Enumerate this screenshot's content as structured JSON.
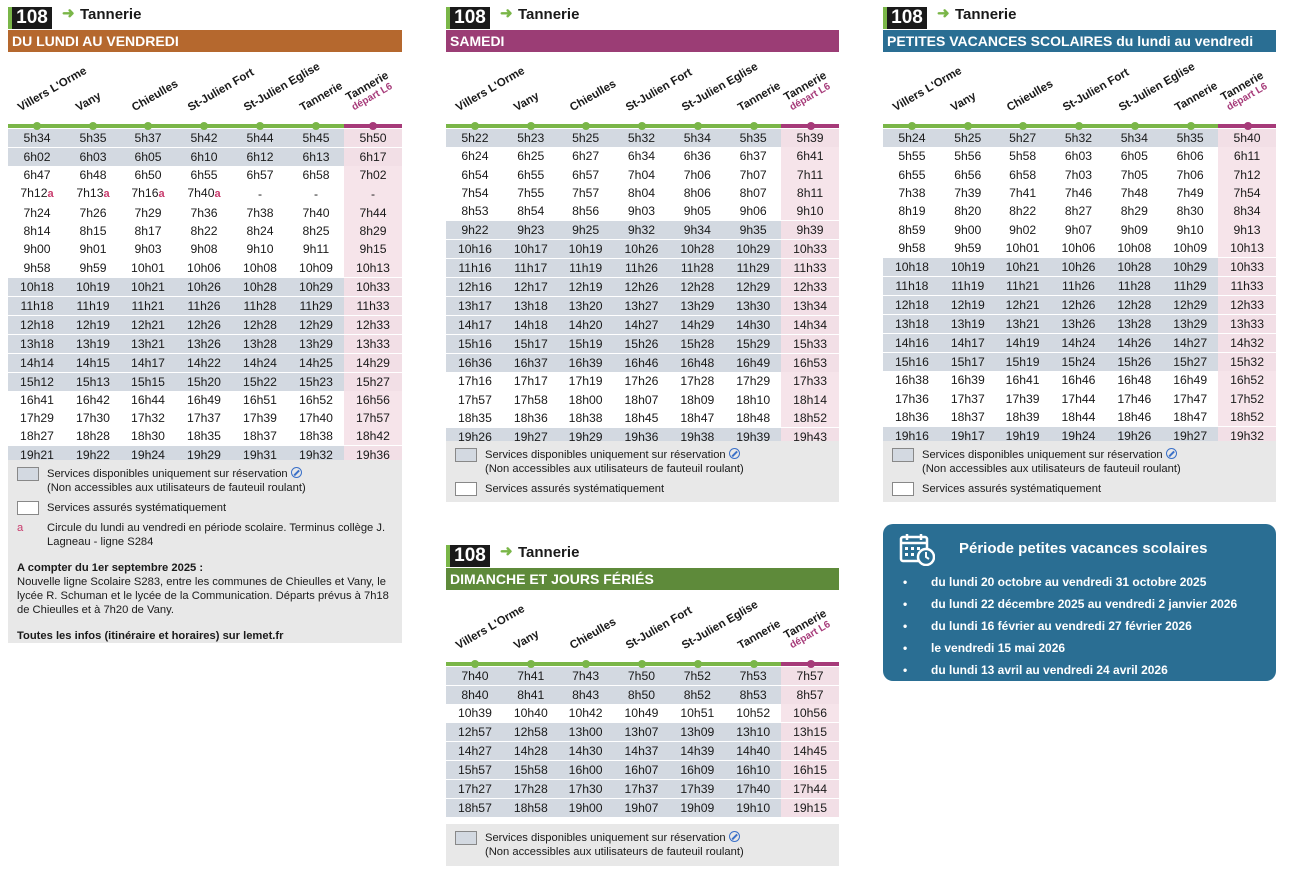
{
  "line_number": "108",
  "destination": "Tannerie",
  "stops": [
    "Villers L'Orme",
    "Vany",
    "Chieulles",
    "St-Julien Fort",
    "St-Julien Eglise",
    "Tannerie",
    "Tannerie"
  ],
  "terminus_sub": "départ L6",
  "schedules": [
    {
      "id": "weekday",
      "title": "DU LUNDI AU VENDREDI",
      "color": "#b5682e",
      "rows": [
        {
          "g": 1,
          "c": [
            "5h34",
            "5h35",
            "5h37",
            "5h42",
            "5h44",
            "5h45",
            "5h50"
          ]
        },
        {
          "g": 1,
          "c": [
            "6h02",
            "6h03",
            "6h05",
            "6h10",
            "6h12",
            "6h13",
            "6h17"
          ]
        },
        {
          "g": 0,
          "c": [
            "6h47",
            "6h48",
            "6h50",
            "6h55",
            "6h57",
            "6h58",
            "7h02"
          ]
        },
        {
          "g": 0,
          "c": [
            "7h12",
            "7h13",
            "7h16",
            "7h40",
            "-",
            "-",
            "-"
          ],
          "a": [
            0,
            1,
            2,
            3
          ]
        },
        {
          "g": 0,
          "c": [
            "7h24",
            "7h26",
            "7h29",
            "7h36",
            "7h38",
            "7h40",
            "7h44"
          ]
        },
        {
          "g": 0,
          "c": [
            "8h14",
            "8h15",
            "8h17",
            "8h22",
            "8h24",
            "8h25",
            "8h29"
          ]
        },
        {
          "g": 0,
          "c": [
            "9h00",
            "9h01",
            "9h03",
            "9h08",
            "9h10",
            "9h11",
            "9h15"
          ]
        },
        {
          "g": 0,
          "c": [
            "9h58",
            "9h59",
            "10h01",
            "10h06",
            "10h08",
            "10h09",
            "10h13"
          ]
        },
        {
          "g": 1,
          "c": [
            "10h18",
            "10h19",
            "10h21",
            "10h26",
            "10h28",
            "10h29",
            "10h33"
          ]
        },
        {
          "g": 1,
          "c": [
            "11h18",
            "11h19",
            "11h21",
            "11h26",
            "11h28",
            "11h29",
            "11h33"
          ]
        },
        {
          "g": 1,
          "c": [
            "12h18",
            "12h19",
            "12h21",
            "12h26",
            "12h28",
            "12h29",
            "12h33"
          ]
        },
        {
          "g": 1,
          "c": [
            "13h18",
            "13h19",
            "13h21",
            "13h26",
            "13h28",
            "13h29",
            "13h33"
          ]
        },
        {
          "g": 1,
          "c": [
            "14h14",
            "14h15",
            "14h17",
            "14h22",
            "14h24",
            "14h25",
            "14h29"
          ]
        },
        {
          "g": 1,
          "c": [
            "15h12",
            "15h13",
            "15h15",
            "15h20",
            "15h22",
            "15h23",
            "15h27"
          ]
        },
        {
          "g": 0,
          "c": [
            "16h41",
            "16h42",
            "16h44",
            "16h49",
            "16h51",
            "16h52",
            "16h56"
          ]
        },
        {
          "g": 0,
          "c": [
            "17h29",
            "17h30",
            "17h32",
            "17h37",
            "17h39",
            "17h40",
            "17h57"
          ]
        },
        {
          "g": 0,
          "c": [
            "18h27",
            "18h28",
            "18h30",
            "18h35",
            "18h37",
            "18h38",
            "18h42"
          ]
        },
        {
          "g": 1,
          "c": [
            "19h21",
            "19h22",
            "19h24",
            "19h29",
            "19h31",
            "19h32",
            "19h36"
          ]
        }
      ]
    },
    {
      "id": "saturday",
      "title": "SAMEDI",
      "color": "#9b3d75",
      "rows": [
        {
          "g": 1,
          "c": [
            "5h22",
            "5h23",
            "5h25",
            "5h32",
            "5h34",
            "5h35",
            "5h39"
          ]
        },
        {
          "g": 0,
          "c": [
            "6h24",
            "6h25",
            "6h27",
            "6h34",
            "6h36",
            "6h37",
            "6h41"
          ]
        },
        {
          "g": 0,
          "c": [
            "6h54",
            "6h55",
            "6h57",
            "7h04",
            "7h06",
            "7h07",
            "7h11"
          ]
        },
        {
          "g": 0,
          "c": [
            "7h54",
            "7h55",
            "7h57",
            "8h04",
            "8h06",
            "8h07",
            "8h11"
          ]
        },
        {
          "g": 0,
          "c": [
            "8h53",
            "8h54",
            "8h56",
            "9h03",
            "9h05",
            "9h06",
            "9h10"
          ]
        },
        {
          "g": 1,
          "c": [
            "9h22",
            "9h23",
            "9h25",
            "9h32",
            "9h34",
            "9h35",
            "9h39"
          ]
        },
        {
          "g": 1,
          "c": [
            "10h16",
            "10h17",
            "10h19",
            "10h26",
            "10h28",
            "10h29",
            "10h33"
          ]
        },
        {
          "g": 1,
          "c": [
            "11h16",
            "11h17",
            "11h19",
            "11h26",
            "11h28",
            "11h29",
            "11h33"
          ]
        },
        {
          "g": 1,
          "c": [
            "12h16",
            "12h17",
            "12h19",
            "12h26",
            "12h28",
            "12h29",
            "12h33"
          ]
        },
        {
          "g": 1,
          "c": [
            "13h17",
            "13h18",
            "13h20",
            "13h27",
            "13h29",
            "13h30",
            "13h34"
          ]
        },
        {
          "g": 1,
          "c": [
            "14h17",
            "14h18",
            "14h20",
            "14h27",
            "14h29",
            "14h30",
            "14h34"
          ]
        },
        {
          "g": 1,
          "c": [
            "15h16",
            "15h17",
            "15h19",
            "15h26",
            "15h28",
            "15h29",
            "15h33"
          ]
        },
        {
          "g": 1,
          "c": [
            "16h36",
            "16h37",
            "16h39",
            "16h46",
            "16h48",
            "16h49",
            "16h53"
          ]
        },
        {
          "g": 0,
          "c": [
            "17h16",
            "17h17",
            "17h19",
            "17h26",
            "17h28",
            "17h29",
            "17h33"
          ]
        },
        {
          "g": 0,
          "c": [
            "17h57",
            "17h58",
            "18h00",
            "18h07",
            "18h09",
            "18h10",
            "18h14"
          ]
        },
        {
          "g": 0,
          "c": [
            "18h35",
            "18h36",
            "18h38",
            "18h45",
            "18h47",
            "18h48",
            "18h52"
          ]
        },
        {
          "g": 1,
          "c": [
            "19h26",
            "19h27",
            "19h29",
            "19h36",
            "19h38",
            "19h39",
            "19h43"
          ]
        }
      ]
    },
    {
      "id": "vacances",
      "title": "PETITES VACANCES SCOLAIRES du lundi au vendredi",
      "color": "#2a6e93",
      "rows": [
        {
          "g": 1,
          "c": [
            "5h24",
            "5h25",
            "5h27",
            "5h32",
            "5h34",
            "5h35",
            "5h40"
          ]
        },
        {
          "g": 0,
          "c": [
            "5h55",
            "5h56",
            "5h58",
            "6h03",
            "6h05",
            "6h06",
            "6h11"
          ]
        },
        {
          "g": 0,
          "c": [
            "6h55",
            "6h56",
            "6h58",
            "7h03",
            "7h05",
            "7h06",
            "7h12"
          ]
        },
        {
          "g": 0,
          "c": [
            "7h38",
            "7h39",
            "7h41",
            "7h46",
            "7h48",
            "7h49",
            "7h54"
          ]
        },
        {
          "g": 0,
          "c": [
            "8h19",
            "8h20",
            "8h22",
            "8h27",
            "8h29",
            "8h30",
            "8h34"
          ]
        },
        {
          "g": 0,
          "c": [
            "8h59",
            "9h00",
            "9h02",
            "9h07",
            "9h09",
            "9h10",
            "9h13"
          ]
        },
        {
          "g": 0,
          "c": [
            "9h58",
            "9h59",
            "10h01",
            "10h06",
            "10h08",
            "10h09",
            "10h13"
          ]
        },
        {
          "g": 1,
          "c": [
            "10h18",
            "10h19",
            "10h21",
            "10h26",
            "10h28",
            "10h29",
            "10h33"
          ]
        },
        {
          "g": 1,
          "c": [
            "11h18",
            "11h19",
            "11h21",
            "11h26",
            "11h28",
            "11h29",
            "11h33"
          ]
        },
        {
          "g": 1,
          "c": [
            "12h18",
            "12h19",
            "12h21",
            "12h26",
            "12h28",
            "12h29",
            "12h33"
          ]
        },
        {
          "g": 1,
          "c": [
            "13h18",
            "13h19",
            "13h21",
            "13h26",
            "13h28",
            "13h29",
            "13h33"
          ]
        },
        {
          "g": 1,
          "c": [
            "14h16",
            "14h17",
            "14h19",
            "14h24",
            "14h26",
            "14h27",
            "14h32"
          ]
        },
        {
          "g": 1,
          "c": [
            "15h16",
            "15h17",
            "15h19",
            "15h24",
            "15h26",
            "15h27",
            "15h32"
          ]
        },
        {
          "g": 0,
          "c": [
            "16h38",
            "16h39",
            "16h41",
            "16h46",
            "16h48",
            "16h49",
            "16h52"
          ]
        },
        {
          "g": 0,
          "c": [
            "17h36",
            "17h37",
            "17h39",
            "17h44",
            "17h46",
            "17h47",
            "17h52"
          ]
        },
        {
          "g": 0,
          "c": [
            "18h36",
            "18h37",
            "18h39",
            "18h44",
            "18h46",
            "18h47",
            "18h52"
          ]
        },
        {
          "g": 1,
          "c": [
            "19h16",
            "19h17",
            "19h19",
            "19h24",
            "19h26",
            "19h27",
            "19h32"
          ]
        }
      ]
    },
    {
      "id": "sunday",
      "title": "DIMANCHE ET JOURS FÉRIÉS",
      "color": "#5e8a3a",
      "rows": [
        {
          "g": 1,
          "c": [
            "7h40",
            "7h41",
            "7h43",
            "7h50",
            "7h52",
            "7h53",
            "7h57"
          ]
        },
        {
          "g": 1,
          "c": [
            "8h40",
            "8h41",
            "8h43",
            "8h50",
            "8h52",
            "8h53",
            "8h57"
          ]
        },
        {
          "g": 0,
          "c": [
            "10h39",
            "10h40",
            "10h42",
            "10h49",
            "10h51",
            "10h52",
            "10h56"
          ]
        },
        {
          "g": 1,
          "c": [
            "12h57",
            "12h58",
            "13h00",
            "13h07",
            "13h09",
            "13h10",
            "13h15"
          ]
        },
        {
          "g": 1,
          "c": [
            "14h27",
            "14h28",
            "14h30",
            "14h37",
            "14h39",
            "14h40",
            "14h45"
          ]
        },
        {
          "g": 1,
          "c": [
            "15h57",
            "15h58",
            "16h00",
            "16h07",
            "16h09",
            "16h10",
            "16h15"
          ]
        },
        {
          "g": 1,
          "c": [
            "17h27",
            "17h28",
            "17h30",
            "17h37",
            "17h39",
            "17h40",
            "17h44"
          ]
        },
        {
          "g": 1,
          "c": [
            "18h57",
            "18h58",
            "19h00",
            "19h07",
            "19h09",
            "19h10",
            "19h15"
          ]
        }
      ]
    }
  ],
  "legend": {
    "reservation": "Services disponibles uniquement sur réservation",
    "wheelchair": "(Non accessibles aux utilisateurs de fauteuil roulant)",
    "systematic": "Services assurés systématiquement",
    "a_letter": "a",
    "a_note": "Circule du lundi au vendredi en période scolaire. Terminus collège J. Lagneau - ligne S284",
    "sept_title": "A compter du 1er septembre 2025 :",
    "sept_text": "Nouvelle ligne Scolaire S283, entre les communes de Chieulles et Vany, le lycée R. Schuman et le lycée de la Communication. Départs prévus à 7h18 de Chieulles et à 7h20 de Vany.",
    "infos": "Toutes les infos (itinéraire et horaires) sur lemet.fr"
  },
  "vacances_box": {
    "title": "Période petites vacances scolaires",
    "items": [
      "du lundi 20 octobre au vendredi 31 octobre 2025",
      "du lundi 22 décembre 2025 au vendredi 2 janvier 2026",
      "du lundi 16 février au vendredi 27 février 2026",
      "le vendredi 15 mai 2026",
      "du lundi 13 avril au vendredi 24 avril 2026"
    ]
  }
}
